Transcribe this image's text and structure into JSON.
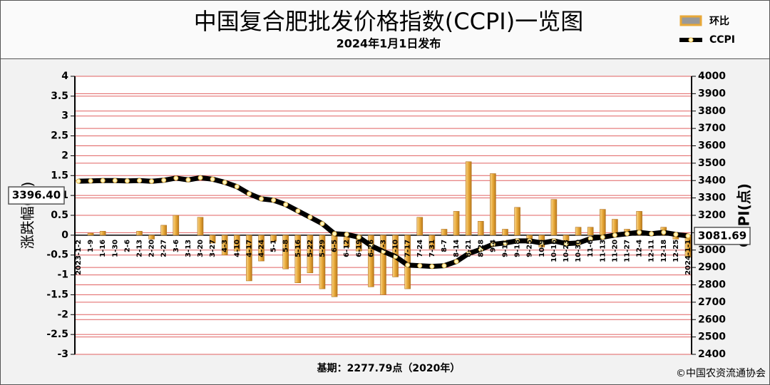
{
  "chart_data": {
    "type": "bar_line",
    "title": "中国复合肥批发价格指数(CCPI)一览图",
    "subtitle": "2024年1月1日发布",
    "y_label": "涨跌幅(%)",
    "y2_label": "CCPI(点)",
    "base_note": "基期：2277.79点（2020年）",
    "source": "©中国农资流通协会",
    "categories": [
      "2023-1-2",
      "1-9",
      "1-16",
      "1-30",
      "2-6",
      "2-13",
      "2-20",
      "2-27",
      "3-6",
      "3-13",
      "3-20",
      "3-27",
      "4-3",
      "4-10",
      "4-17",
      "4-24",
      "5-1",
      "5-8",
      "5-16",
      "5-22",
      "5-29",
      "6-5",
      "6-12",
      "6-19",
      "6-26",
      "7-3",
      "7-10",
      "7-17",
      "7-24",
      "7-31",
      "8-7",
      "8-14",
      "8-21",
      "8-28",
      "9-4",
      "9-11",
      "9-18",
      "9-25",
      "10-9",
      "10-16",
      "10-23",
      "10-30",
      "11-6",
      "11-13",
      "11-20",
      "11-27",
      "12-4",
      "12-11",
      "12-18",
      "12-25",
      "2024-1-1"
    ],
    "series": [
      {
        "name": "环比",
        "color": "#e8a838",
        "values": [
          0,
          0.05,
          0.1,
          0,
          0,
          0.1,
          -0.1,
          0.25,
          0.5,
          0,
          0.45,
          -0.2,
          -0.5,
          -0.4,
          -1.15,
          -0.65,
          -0.15,
          -0.85,
          -1.2,
          -0.95,
          -1.35,
          -1.55,
          -0.3,
          -0.4,
          -1.3,
          -1.5,
          -1.05,
          -1.35,
          0.45,
          -0.35,
          0.15,
          0.6,
          1.85,
          0.35,
          1.55,
          0.15,
          0.7,
          -0.2,
          -0.3,
          0.9,
          -0.15,
          0.2,
          0.2,
          0.65,
          0.4,
          0.15,
          0.6,
          0.05,
          0.2,
          -0.1,
          -0.55
        ]
      },
      {
        "name": "CCPI",
        "color": "#000000",
        "axis": "y2",
        "values": [
          3396.4,
          3398,
          3400,
          3400,
          3398,
          3400,
          3396,
          3402,
          3414,
          3404,
          3416,
          3408,
          3390,
          3365,
          3324,
          3295,
          3287,
          3262,
          3225,
          3189,
          3152,
          3094,
          3090,
          3074,
          3025,
          2992,
          2963,
          2914,
          2910,
          2906,
          2910,
          2934,
          2980,
          3004,
          3033,
          3041,
          3053,
          3053,
          3041,
          3053,
          3037,
          3041,
          3066,
          3074,
          3086,
          3094,
          3102,
          3094,
          3102,
          3090,
          3081.69
        ],
        "value_labels": [
          "3396.40",
          null,
          null,
          null,
          null,
          null,
          null,
          null,
          null,
          null,
          null,
          null,
          null,
          null,
          null,
          null,
          null,
          null,
          null,
          null,
          null,
          null,
          null,
          null,
          null,
          null,
          null,
          null,
          null,
          null,
          null,
          null,
          null,
          null,
          null,
          null,
          null,
          null,
          null,
          null,
          null,
          null,
          null,
          null,
          null,
          null,
          null,
          null,
          null,
          null,
          "3081.69"
        ]
      }
    ],
    "ylim": [
      -3,
      4
    ],
    "yticks": [
      -3,
      -2.5,
      -2,
      -1.5,
      -1,
      -0.5,
      0,
      0.5,
      1,
      1.5,
      2,
      2.5,
      3,
      3.5,
      4
    ],
    "y2lim": [
      2400,
      4000
    ],
    "y2ticks": [
      2400,
      2500,
      2600,
      2700,
      2800,
      2900,
      3000,
      3100,
      3200,
      3300,
      3400,
      3500,
      3600,
      3700,
      3800,
      3900,
      4000
    ],
    "grid": true,
    "grid_color": "#e06060",
    "legend": "top-right"
  }
}
